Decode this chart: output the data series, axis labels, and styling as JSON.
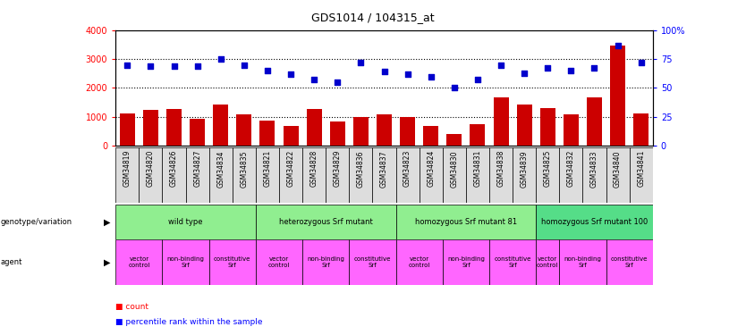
{
  "title": "GDS1014 / 104315_at",
  "samples": [
    "GSM34819",
    "GSM34820",
    "GSM34826",
    "GSM34827",
    "GSM34834",
    "GSM34835",
    "GSM34821",
    "GSM34822",
    "GSM34828",
    "GSM34829",
    "GSM34836",
    "GSM34837",
    "GSM34823",
    "GSM34824",
    "GSM34830",
    "GSM34831",
    "GSM34838",
    "GSM34839",
    "GSM34825",
    "GSM34832",
    "GSM34833",
    "GSM34840",
    "GSM34841"
  ],
  "counts": [
    1120,
    1230,
    1280,
    940,
    1420,
    1090,
    860,
    670,
    1270,
    840,
    980,
    1080,
    980,
    680,
    410,
    750,
    1660,
    1420,
    1300,
    1100,
    1660,
    3480,
    1120
  ],
  "percentiles": [
    70,
    69,
    69,
    69,
    75,
    70,
    65,
    62,
    57,
    55,
    72,
    64,
    62,
    60,
    50,
    57,
    70,
    63,
    67,
    65,
    67,
    87,
    72
  ],
  "genotype_groups": [
    {
      "label": "wild type",
      "start": 0,
      "end": 5,
      "color": "#90EE90"
    },
    {
      "label": "heterozygous Srf mutant",
      "start": 6,
      "end": 11,
      "color": "#90EE90"
    },
    {
      "label": "homozygous Srf mutant 81",
      "start": 12,
      "end": 17,
      "color": "#90EE90"
    },
    {
      "label": "homozygous Srf mutant 100",
      "start": 18,
      "end": 22,
      "color": "#55DD88"
    }
  ],
  "agent_groups": [
    {
      "label": "vector\ncontrol",
      "start": 0,
      "end": 1,
      "color": "#FF66FF"
    },
    {
      "label": "non-binding\nSrf",
      "start": 2,
      "end": 3,
      "color": "#FF66FF"
    },
    {
      "label": "constitutive\nSrf",
      "start": 4,
      "end": 5,
      "color": "#FF66FF"
    },
    {
      "label": "vector\ncontrol",
      "start": 6,
      "end": 7,
      "color": "#FF66FF"
    },
    {
      "label": "non-binding\nSrf",
      "start": 8,
      "end": 9,
      "color": "#FF66FF"
    },
    {
      "label": "constitutive\nSrf",
      "start": 10,
      "end": 11,
      "color": "#FF66FF"
    },
    {
      "label": "vector\ncontrol",
      "start": 12,
      "end": 13,
      "color": "#FF66FF"
    },
    {
      "label": "non-binding\nSrf",
      "start": 14,
      "end": 15,
      "color": "#FF66FF"
    },
    {
      "label": "constitutive\nSrf",
      "start": 16,
      "end": 17,
      "color": "#FF66FF"
    },
    {
      "label": "vector\ncontrol",
      "start": 18,
      "end": 18,
      "color": "#FF66FF"
    },
    {
      "label": "non-binding\nSrf",
      "start": 19,
      "end": 20,
      "color": "#FF66FF"
    },
    {
      "label": "constitutive\nSrf",
      "start": 21,
      "end": 22,
      "color": "#FF66FF"
    }
  ],
  "bar_color": "#CC0000",
  "dot_color": "#0000CC",
  "left_ylim": [
    0,
    4000
  ],
  "right_ylim": [
    0,
    100
  ],
  "left_yticks": [
    0,
    1000,
    2000,
    3000,
    4000
  ],
  "right_yticks": [
    0,
    25,
    50,
    75,
    100
  ],
  "right_yticklabels": [
    "0",
    "25",
    "50",
    "75",
    "100%"
  ],
  "grid_values": [
    1000,
    2000,
    3000
  ],
  "background_color": "#FFFFFF",
  "sample_bg_color": "#DDDDDD",
  "genotype_light_green": "#90EE90",
  "genotype_dark_green": "#55DD88"
}
